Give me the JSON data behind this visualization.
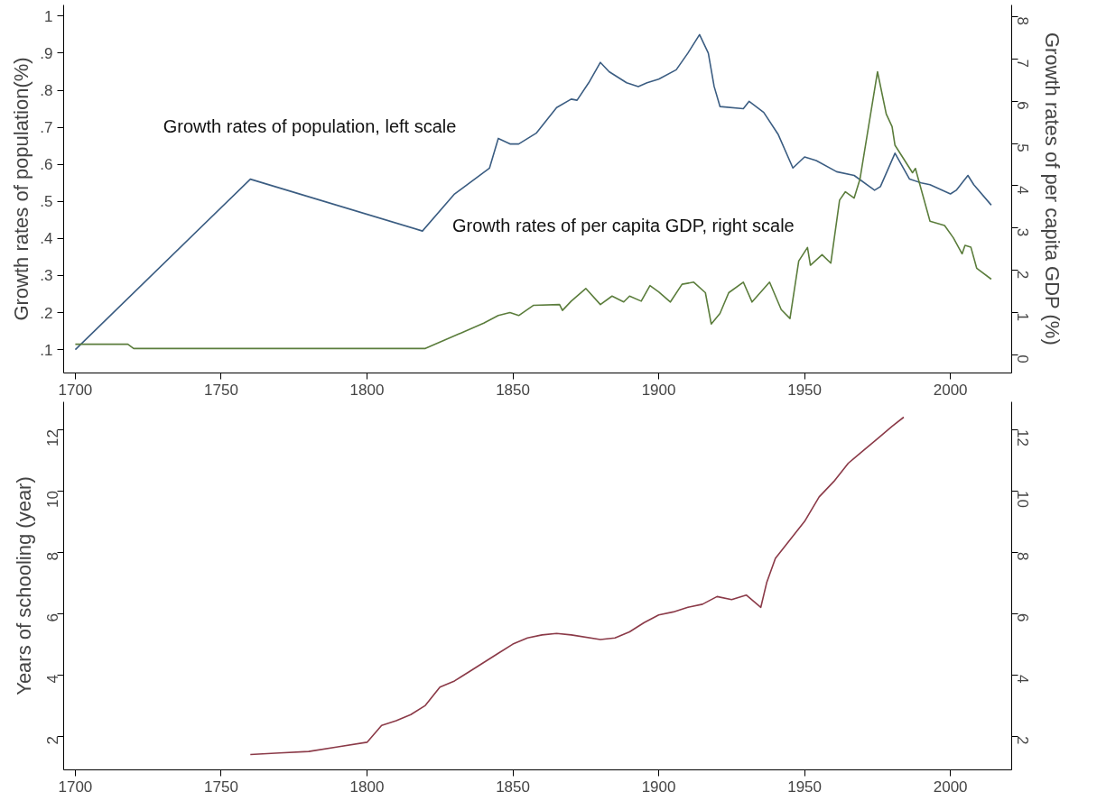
{
  "chart_data": [
    {
      "type": "line",
      "ylabel": "Growth rates of population(%)",
      "y2label": "Growth rates of per capita GDP (%)",
      "xlim": [
        1696,
        2021
      ],
      "xticks": [
        1700,
        1750,
        1800,
        1850,
        1900,
        1950,
        2000
      ],
      "ylim": [
        0.037,
        1.03
      ],
      "yticks": [
        {
          "value": 0.1,
          "label": ".1"
        },
        {
          "value": 0.2,
          "label": ".2"
        },
        {
          "value": 0.3,
          "label": ".3"
        },
        {
          "value": 0.4,
          "label": ".4"
        },
        {
          "value": 0.5,
          "label": ".5"
        },
        {
          "value": 0.6,
          "label": ".6"
        },
        {
          "value": 0.7,
          "label": ".7"
        },
        {
          "value": 0.8,
          "label": ".8"
        },
        {
          "value": 0.9,
          "label": ".9"
        },
        1
      ],
      "y2lim": [
        -0.43,
        8.28
      ],
      "y2ticks": [
        0,
        1,
        2,
        3,
        4,
        5,
        6,
        7,
        8
      ],
      "series": [
        {
          "name": "Growth rates of population, left scale",
          "color": "#3b5d82",
          "x": [
            1700,
            1760,
            1819,
            1830,
            1842,
            1845,
            1849,
            1852,
            1858,
            1865,
            1870,
            1872,
            1876,
            1880,
            1883,
            1889,
            1893,
            1896,
            1900,
            1906,
            1910,
            1914,
            1917,
            1919,
            1921,
            1929,
            1931,
            1936,
            1941,
            1946,
            1950,
            1954,
            1961,
            1967,
            1974,
            1976,
            1981,
            1986,
            1990,
            1993,
            2000,
            2002,
            2006,
            2008,
            2014
          ],
          "values": [
            0.1,
            0.56,
            0.42,
            0.52,
            0.59,
            0.67,
            0.655,
            0.655,
            0.684,
            0.753,
            0.776,
            0.773,
            0.82,
            0.875,
            0.85,
            0.82,
            0.81,
            0.82,
            0.83,
            0.855,
            0.9,
            0.95,
            0.9,
            0.81,
            0.756,
            0.75,
            0.77,
            0.74,
            0.68,
            0.59,
            0.62,
            0.61,
            0.58,
            0.57,
            0.53,
            0.54,
            0.63,
            0.56,
            0.55,
            0.545,
            0.52,
            0.53,
            0.57,
            0.545,
            0.49
          ]
        },
        {
          "name": "Growth rates of per capita GDP, right scale",
          "color": "#5b7d3c",
          "axis": "y2",
          "x": [
            1700,
            1718,
            1720,
            1820,
            1825,
            1830,
            1840,
            1845,
            1849,
            1852,
            1857,
            1866,
            1867,
            1870,
            1875,
            1880,
            1884,
            1888,
            1890,
            1894,
            1897,
            1900,
            1904,
            1908,
            1912,
            1916,
            1918,
            1921,
            1924,
            1929,
            1932,
            1938,
            1942,
            1945,
            1948,
            1951,
            1952,
            1956,
            1959,
            1962,
            1964,
            1967,
            1969,
            1975,
            1978,
            1980,
            1981,
            1987,
            1988,
            1993,
            1998,
            2001,
            2004,
            2005,
            2007,
            2009,
            2014
          ],
          "values": [
            0.25,
            0.25,
            0.15,
            0.15,
            0.3,
            0.45,
            0.75,
            0.93,
            1.0,
            0.93,
            1.17,
            1.19,
            1.05,
            1.27,
            1.57,
            1.19,
            1.39,
            1.25,
            1.39,
            1.27,
            1.64,
            1.49,
            1.25,
            1.67,
            1.72,
            1.47,
            0.73,
            0.98,
            1.47,
            1.72,
            1.25,
            1.72,
            1.07,
            0.86,
            2.22,
            2.54,
            2.12,
            2.37,
            2.17,
            3.66,
            3.86,
            3.71,
            4.16,
            6.7,
            5.7,
            5.4,
            4.96,
            4.31,
            4.41,
            3.16,
            3.06,
            2.77,
            2.39,
            2.59,
            2.55,
            2.05,
            1.79
          ]
        }
      ]
    },
    {
      "type": "line",
      "ylabel": "Years of schooling (year)",
      "xlim": [
        1696,
        2021
      ],
      "xticks": [
        1700,
        1750,
        1800,
        1850,
        1900,
        1950,
        2000
      ],
      "ylim": [
        0.9,
        12.9
      ],
      "yticks": [
        2,
        4,
        6,
        8,
        10,
        12
      ],
      "y2lim": [
        0.9,
        12.9
      ],
      "y2ticks": [
        2,
        4,
        6,
        8,
        10,
        12
      ],
      "series": [
        {
          "color": "#8b3a48",
          "x": [
            1760,
            1770,
            1780,
            1790,
            1800,
            1805,
            1810,
            1815,
            1820,
            1825,
            1830,
            1835,
            1840,
            1845,
            1850,
            1855,
            1860,
            1865,
            1870,
            1880,
            1885,
            1890,
            1895,
            1900,
            1905,
            1910,
            1915,
            1920,
            1925,
            1930,
            1935,
            1937,
            1940,
            1945,
            1950,
            1955,
            1960,
            1965,
            1970,
            1975,
            1980,
            1984
          ],
          "values": [
            1.4,
            1.45,
            1.5,
            1.65,
            1.8,
            2.35,
            2.5,
            2.7,
            3.0,
            3.6,
            3.8,
            4.1,
            4.4,
            4.7,
            5.0,
            5.2,
            5.3,
            5.35,
            5.3,
            5.15,
            5.2,
            5.4,
            5.7,
            5.95,
            6.05,
            6.2,
            6.3,
            6.55,
            6.45,
            6.6,
            6.2,
            7.0,
            7.8,
            8.4,
            9.0,
            9.8,
            10.3,
            10.9,
            11.3,
            11.7,
            12.1,
            12.4
          ]
        }
      ]
    }
  ]
}
